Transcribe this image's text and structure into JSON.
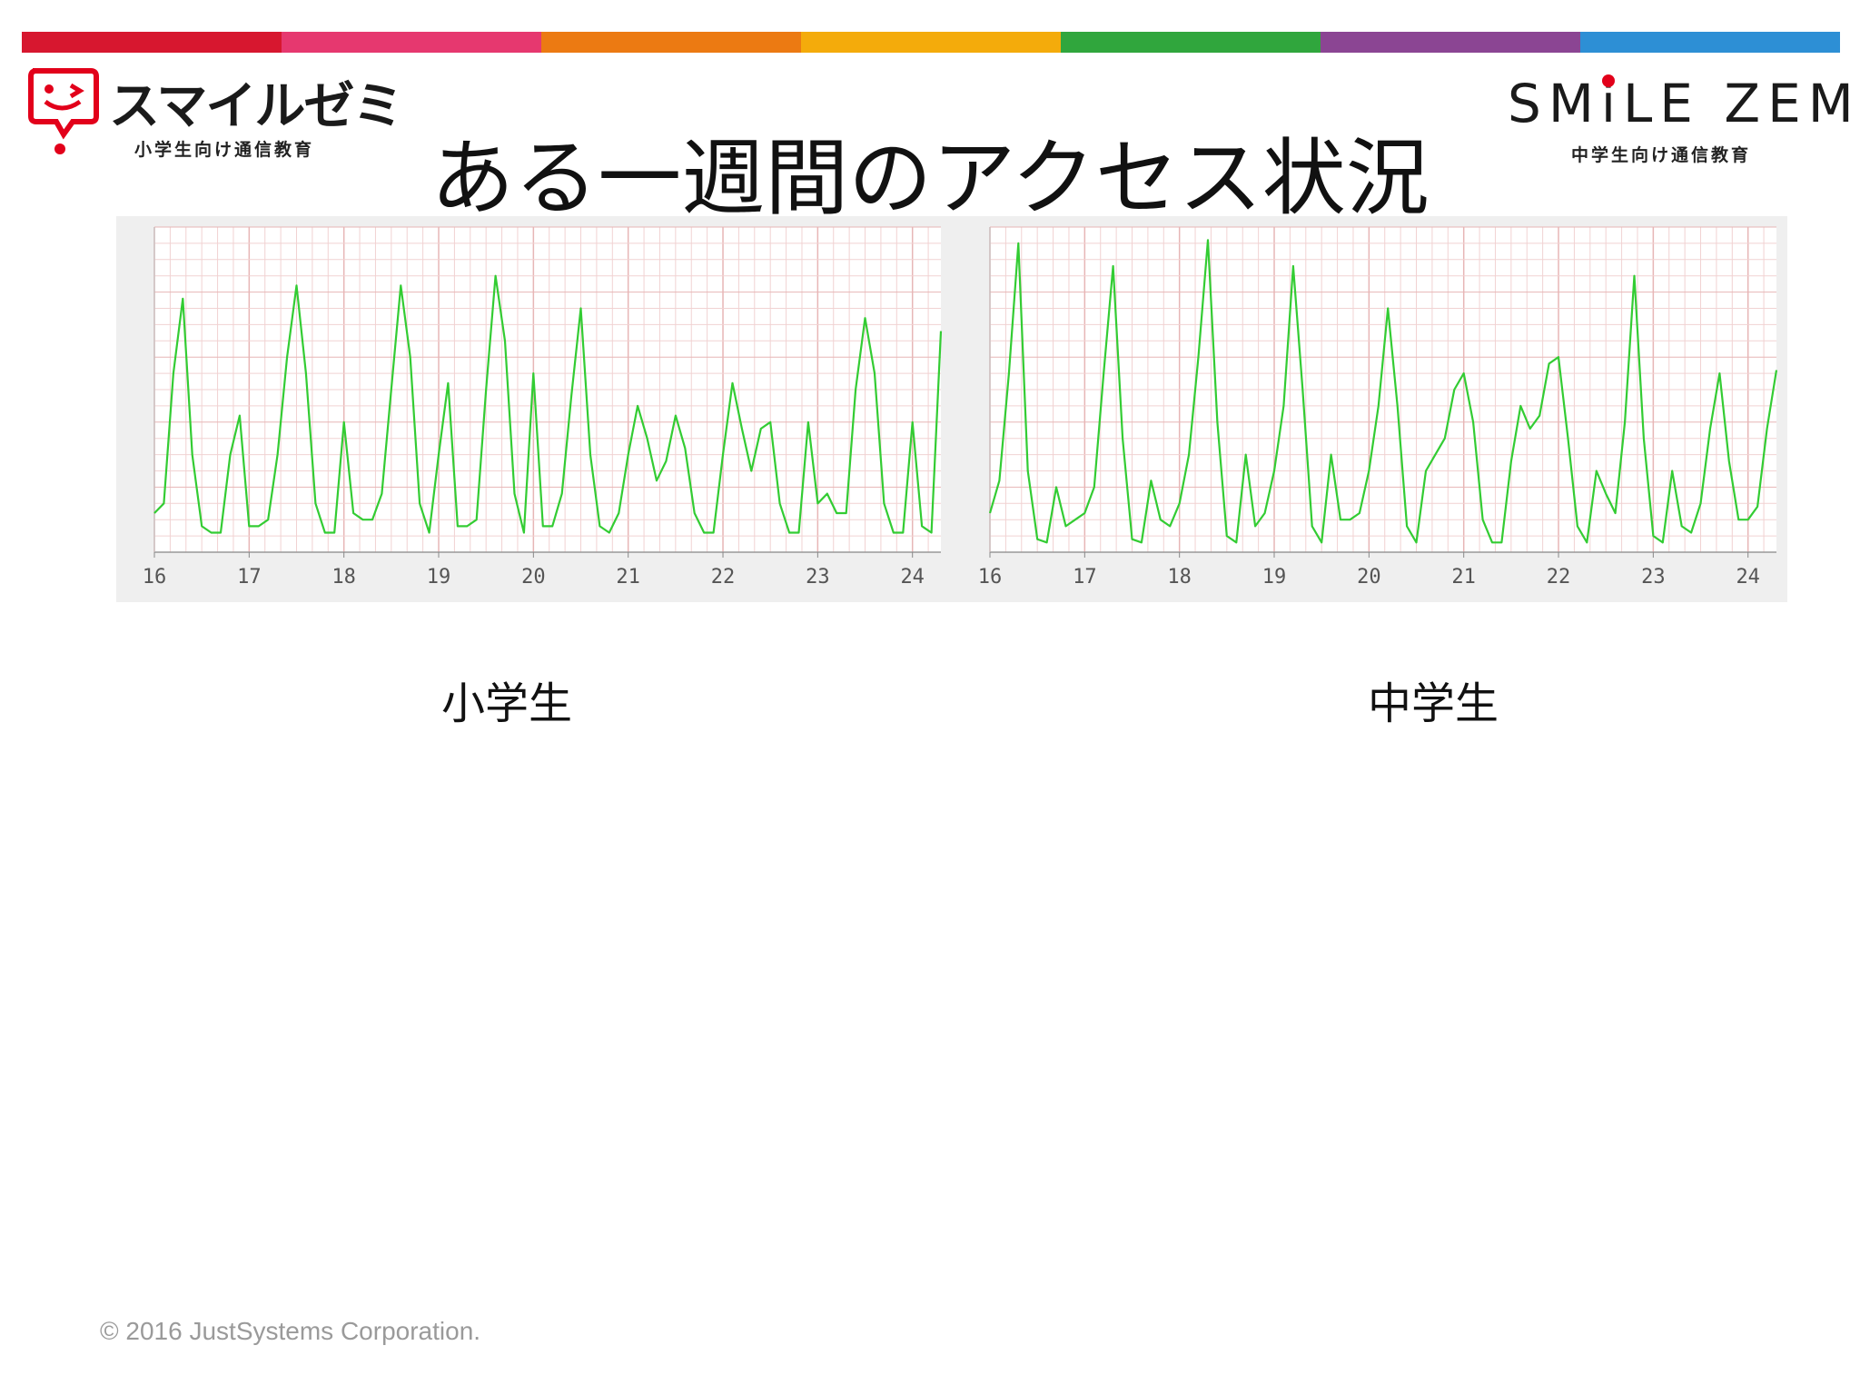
{
  "header": {
    "stripe_colors": [
      "#d7172f",
      "#e6386f",
      "#ec7a12",
      "#f4ab0b",
      "#30a63d",
      "#8b4593",
      "#2d8fd5"
    ],
    "logo_left": {
      "wordmark": "スマイルゼミ",
      "subtitle": "小学生向け通信教育"
    },
    "logo_right": {
      "wordmark": "SMiLE ZEMI",
      "subtitle": "中学生向け通信教育"
    },
    "title": "ある一週間のアクセス状況"
  },
  "labels": {
    "left": "小学生",
    "right": "中学生"
  },
  "footer": {
    "copyright": "© 2016 JustSystems Corporation."
  },
  "colors": {
    "line": "#33cc33",
    "grid_major": "#e7b6b6",
    "grid_minor": "#f1d2d2",
    "panel_bg": "#ffffff",
    "accent_red": "#e2001a"
  },
  "chart_data": [
    {
      "type": "line",
      "name": "小学生",
      "x_ticks": [
        "16",
        "17",
        "18",
        "19",
        "20",
        "21",
        "22",
        "23",
        "24"
      ],
      "xlim": [
        16,
        24.3
      ],
      "ylim": [
        0,
        1
      ],
      "grid": true,
      "x": [
        16.0,
        16.1,
        16.2,
        16.3,
        16.4,
        16.5,
        16.6,
        16.7,
        16.8,
        16.9,
        17.0,
        17.1,
        17.2,
        17.3,
        17.4,
        17.5,
        17.6,
        17.7,
        17.8,
        17.9,
        18.0,
        18.1,
        18.2,
        18.3,
        18.4,
        18.5,
        18.6,
        18.7,
        18.8,
        18.9,
        19.0,
        19.1,
        19.2,
        19.3,
        19.4,
        19.5,
        19.6,
        19.7,
        19.8,
        19.9,
        20.0,
        20.1,
        20.2,
        20.3,
        20.4,
        20.5,
        20.6,
        20.7,
        20.8,
        20.9,
        21.0,
        21.1,
        21.2,
        21.3,
        21.4,
        21.5,
        21.6,
        21.7,
        21.8,
        21.9,
        22.0,
        22.1,
        22.2,
        22.3,
        22.4,
        22.5,
        22.6,
        22.7,
        22.8,
        22.9,
        23.0,
        23.1,
        23.2,
        23.3,
        23.4,
        23.5,
        23.6,
        23.7,
        23.8,
        23.9,
        24.0,
        24.1,
        24.2,
        24.3
      ],
      "y": [
        0.12,
        0.15,
        0.55,
        0.78,
        0.3,
        0.08,
        0.06,
        0.06,
        0.3,
        0.42,
        0.08,
        0.08,
        0.1,
        0.3,
        0.6,
        0.82,
        0.55,
        0.15,
        0.06,
        0.06,
        0.4,
        0.12,
        0.1,
        0.1,
        0.18,
        0.5,
        0.82,
        0.6,
        0.15,
        0.06,
        0.3,
        0.52,
        0.08,
        0.08,
        0.1,
        0.5,
        0.85,
        0.65,
        0.18,
        0.06,
        0.55,
        0.08,
        0.08,
        0.18,
        0.48,
        0.75,
        0.3,
        0.08,
        0.06,
        0.12,
        0.3,
        0.45,
        0.35,
        0.22,
        0.28,
        0.42,
        0.32,
        0.12,
        0.06,
        0.06,
        0.3,
        0.52,
        0.38,
        0.25,
        0.38,
        0.4,
        0.15,
        0.06,
        0.06,
        0.4,
        0.15,
        0.18,
        0.12,
        0.12,
        0.5,
        0.72,
        0.55,
        0.15,
        0.06,
        0.06,
        0.4,
        0.08,
        0.06,
        0.68
      ]
    },
    {
      "type": "line",
      "name": "中学生",
      "x_ticks": [
        "16",
        "17",
        "18",
        "19",
        "20",
        "21",
        "22",
        "23",
        "24"
      ],
      "xlim": [
        16,
        24.3
      ],
      "ylim": [
        0,
        1
      ],
      "grid": true,
      "x": [
        16.0,
        16.1,
        16.2,
        16.3,
        16.4,
        16.5,
        16.6,
        16.7,
        16.8,
        16.9,
        17.0,
        17.1,
        17.2,
        17.3,
        17.4,
        17.5,
        17.6,
        17.7,
        17.8,
        17.9,
        18.0,
        18.1,
        18.2,
        18.3,
        18.4,
        18.5,
        18.6,
        18.7,
        18.8,
        18.9,
        19.0,
        19.1,
        19.2,
        19.3,
        19.4,
        19.5,
        19.6,
        19.7,
        19.8,
        19.9,
        20.0,
        20.1,
        20.2,
        20.3,
        20.4,
        20.5,
        20.6,
        20.7,
        20.8,
        20.9,
        21.0,
        21.1,
        21.2,
        21.3,
        21.4,
        21.5,
        21.6,
        21.7,
        21.8,
        21.9,
        22.0,
        22.1,
        22.2,
        22.3,
        22.4,
        22.5,
        22.6,
        22.7,
        22.8,
        22.9,
        23.0,
        23.1,
        23.2,
        23.3,
        23.4,
        23.5,
        23.6,
        23.7,
        23.8,
        23.9,
        24.0,
        24.1,
        24.2,
        24.3
      ],
      "y": [
        0.12,
        0.22,
        0.55,
        0.95,
        0.25,
        0.04,
        0.03,
        0.2,
        0.08,
        0.1,
        0.12,
        0.2,
        0.55,
        0.88,
        0.35,
        0.04,
        0.03,
        0.22,
        0.1,
        0.08,
        0.15,
        0.3,
        0.6,
        0.96,
        0.4,
        0.05,
        0.03,
        0.3,
        0.08,
        0.12,
        0.25,
        0.45,
        0.88,
        0.5,
        0.08,
        0.03,
        0.3,
        0.1,
        0.1,
        0.12,
        0.25,
        0.45,
        0.75,
        0.45,
        0.08,
        0.03,
        0.25,
        0.3,
        0.35,
        0.5,
        0.55,
        0.4,
        0.1,
        0.03,
        0.03,
        0.28,
        0.45,
        0.38,
        0.42,
        0.58,
        0.6,
        0.35,
        0.08,
        0.03,
        0.25,
        0.18,
        0.12,
        0.4,
        0.85,
        0.35,
        0.05,
        0.03,
        0.25,
        0.08,
        0.06,
        0.15,
        0.38,
        0.55,
        0.28,
        0.1,
        0.1,
        0.14,
        0.38,
        0.56
      ]
    }
  ]
}
